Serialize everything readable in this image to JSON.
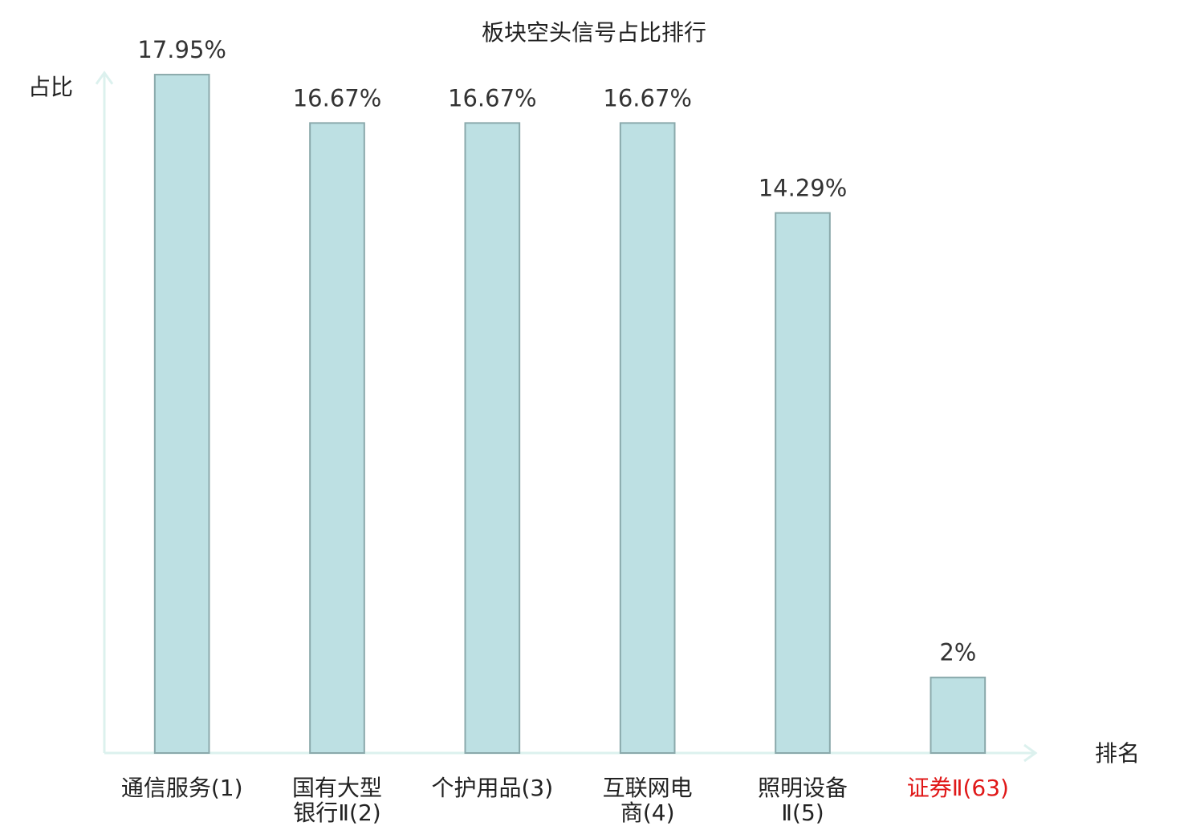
{
  "chart_data": {
    "type": "bar",
    "title": "板块空头信号占比排行",
    "y_label": "占比",
    "x_label": "排名",
    "categories": [
      "通信服务(1)",
      "国有大型银行Ⅱ(2)",
      "个护用品(3)",
      "互联网电商(4)",
      "照明设备Ⅱ(5)",
      "证券Ⅱ(63)"
    ],
    "label_colors": [
      "#222222",
      "#222222",
      "#222222",
      "#222222",
      "#222222",
      "#e01818"
    ],
    "values": [
      17.95,
      16.67,
      16.67,
      16.67,
      14.29,
      2
    ],
    "value_labels": [
      "17.95%",
      "16.67%",
      "16.67%",
      "16.67%",
      "14.29%",
      "2%"
    ],
    "color": "#bde0e3",
    "edge_color": "#8aa9ab",
    "axis_color": "#dcf1ee",
    "ylim": [
      0,
      18
    ]
  }
}
